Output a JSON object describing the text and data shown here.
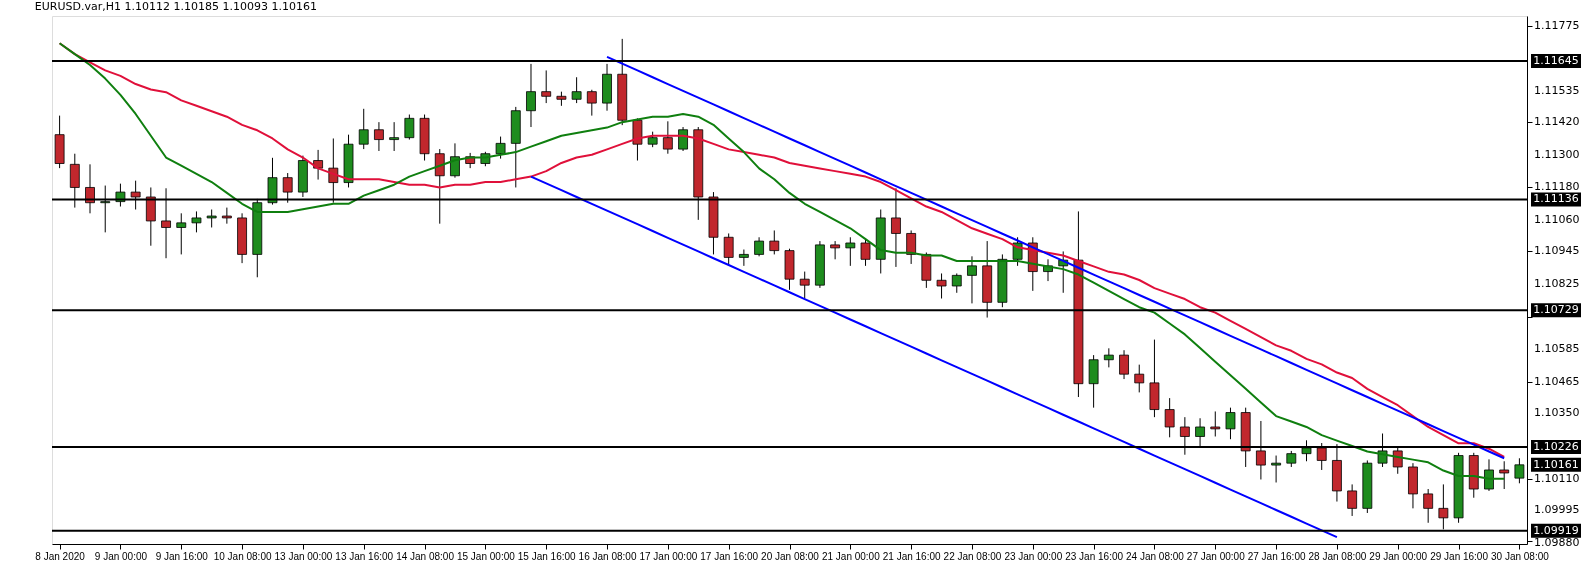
{
  "chart_data": {
    "type": "candlestick",
    "title": "EURUSD.var,H1  1.10112 1.10185 1.10093 1.10161",
    "categories": [
      "8 Jan 2020",
      null,
      null,
      null,
      "9 Jan 00:00",
      null,
      null,
      null,
      "9 Jan 16:00",
      null,
      null,
      null,
      "10 Jan 08:00",
      null,
      null,
      null,
      "13 Jan 00:00",
      null,
      null,
      null,
      "13 Jan 16:00",
      null,
      null,
      null,
      "14 Jan 08:00",
      null,
      null,
      null,
      "15 Jan 00:00",
      null,
      null,
      null,
      "15 Jan 16:00",
      null,
      null,
      null,
      "16 Jan 08:00",
      null,
      null,
      null,
      "17 Jan 00:00",
      null,
      null,
      null,
      "17 Jan 16:00",
      null,
      null,
      null,
      "20 Jan 08:00",
      null,
      null,
      null,
      "21 Jan 00:00",
      null,
      null,
      null,
      "21 Jan 16:00",
      null,
      null,
      null,
      "22 Jan 08:00",
      null,
      null,
      null,
      "23 Jan 00:00",
      null,
      null,
      null,
      "23 Jan 16:00",
      null,
      null,
      null,
      "24 Jan 08:00",
      null,
      null,
      null,
      "27 Jan 00:00",
      null,
      null,
      null,
      "27 Jan 16:00",
      null,
      null,
      null,
      "28 Jan 08:00",
      null,
      null,
      null,
      "29 Jan 00:00",
      null,
      null,
      null,
      "29 Jan 16:00",
      null,
      null,
      null,
      "30 Jan 08:00"
    ],
    "ohlc": [
      [
        1.11374,
        1.11444,
        1.11251,
        1.11268
      ],
      [
        1.11265,
        1.11304,
        1.11106,
        1.1118
      ],
      [
        1.1118,
        1.11265,
        1.11085,
        1.11124
      ],
      [
        1.11124,
        1.11187,
        1.11015,
        1.11128
      ],
      [
        1.11128,
        1.11194,
        1.1111,
        1.11163
      ],
      [
        1.11163,
        1.11205,
        1.11099,
        1.11145
      ],
      [
        1.11145,
        1.1118,
        1.10966,
        1.11057
      ],
      [
        1.11057,
        1.11177,
        1.1092,
        1.11033
      ],
      [
        1.11033,
        1.11085,
        1.10934,
        1.1105
      ],
      [
        1.1105,
        1.11092,
        1.11015,
        1.11068
      ],
      [
        1.11068,
        1.11099,
        1.11033,
        1.11075
      ],
      [
        1.11075,
        1.11106,
        1.11047,
        1.11068
      ],
      [
        1.11068,
        1.11085,
        1.10902,
        1.10934
      ],
      [
        1.10934,
        1.11138,
        1.1085,
        1.11124
      ],
      [
        1.11124,
        1.11289,
        1.11117,
        1.11216
      ],
      [
        1.11216,
        1.11233,
        1.11124,
        1.11163
      ],
      [
        1.11163,
        1.11297,
        1.11145,
        1.11279
      ],
      [
        1.11279,
        1.11318,
        1.11209,
        1.11251
      ],
      [
        1.11251,
        1.1136,
        1.11124,
        1.11198
      ],
      [
        1.11198,
        1.11374,
        1.1118,
        1.11339
      ],
      [
        1.11339,
        1.11469,
        1.11321,
        1.11392
      ],
      [
        1.11392,
        1.1142,
        1.11314,
        1.11356
      ],
      [
        1.11356,
        1.1142,
        1.11314,
        1.11363
      ],
      [
        1.11363,
        1.11448,
        1.11356,
        1.11434
      ],
      [
        1.11434,
        1.11448,
        1.11279,
        1.11304
      ],
      [
        1.11304,
        1.11321,
        1.11047,
        1.11223
      ],
      [
        1.11223,
        1.11342,
        1.11216,
        1.11293
      ],
      [
        1.11293,
        1.11307,
        1.11251,
        1.11268
      ],
      [
        1.11268,
        1.11311,
        1.11258,
        1.11304
      ],
      [
        1.11304,
        1.11367,
        1.11286,
        1.11342
      ],
      [
        1.11342,
        1.11476,
        1.1118,
        1.11462
      ],
      [
        1.11462,
        1.11634,
        1.11402,
        1.11532
      ],
      [
        1.11532,
        1.1161,
        1.1149,
        1.11515
      ],
      [
        1.11515,
        1.11532,
        1.1148,
        1.11504
      ],
      [
        1.11504,
        1.11585,
        1.1149,
        1.11532
      ],
      [
        1.11532,
        1.11539,
        1.11444,
        1.1149
      ],
      [
        1.1149,
        1.11634,
        1.11462,
        1.11596
      ],
      [
        1.11596,
        1.11726,
        1.11409,
        1.11427
      ],
      [
        1.11427,
        1.11434,
        1.11279,
        1.11339
      ],
      [
        1.11339,
        1.11385,
        1.11328,
        1.11363
      ],
      [
        1.11363,
        1.11423,
        1.11304,
        1.11321
      ],
      [
        1.11321,
        1.11402,
        1.11314,
        1.11392
      ],
      [
        1.11392,
        1.11402,
        1.11061,
        1.11145
      ],
      [
        1.11145,
        1.11163,
        1.10934,
        1.10997
      ],
      [
        1.10997,
        1.11011,
        1.10892,
        1.10923
      ],
      [
        1.10923,
        1.10952,
        1.10892,
        1.10934
      ],
      [
        1.10934,
        1.10997,
        1.10927,
        1.10983
      ],
      [
        1.10983,
        1.11022,
        1.10934,
        1.10948
      ],
      [
        1.10948,
        1.10955,
        1.10804,
        1.10843
      ],
      [
        1.10843,
        1.10871,
        1.10772,
        1.10821
      ],
      [
        1.10821,
        1.10983,
        1.10811,
        1.10969
      ],
      [
        1.10969,
        1.10983,
        1.10916,
        1.10958
      ],
      [
        1.10958,
        1.10997,
        1.10892,
        1.10976
      ],
      [
        1.10976,
        1.10994,
        1.10892,
        1.10916
      ],
      [
        1.10916,
        1.11099,
        1.10864,
        1.11068
      ],
      [
        1.11068,
        1.11177,
        1.10888,
        1.11011
      ],
      [
        1.11011,
        1.11022,
        1.10899,
        1.10934
      ],
      [
        1.10934,
        1.10941,
        1.10811,
        1.10839
      ],
      [
        1.10839,
        1.10864,
        1.10772,
        1.10818
      ],
      [
        1.10818,
        1.10864,
        1.10793,
        1.10857
      ],
      [
        1.10857,
        1.10927,
        1.10754,
        1.10892
      ],
      [
        1.10892,
        1.10983,
        1.10702,
        1.10758
      ],
      [
        1.10758,
        1.10934,
        1.1074,
        1.10916
      ],
      [
        1.10916,
        1.10997,
        1.10892,
        1.10976
      ],
      [
        1.10976,
        1.10997,
        1.108,
        1.10871
      ],
      [
        1.10871,
        1.10916,
        1.10836,
        1.10892
      ],
      [
        1.10892,
        1.10945,
        1.10793,
        1.10913
      ],
      [
        1.10913,
        1.11092,
        1.1041,
        1.10459
      ],
      [
        1.10459,
        1.10564,
        1.10371,
        1.10547
      ],
      [
        1.10547,
        1.10589,
        1.10519,
        1.10564
      ],
      [
        1.10564,
        1.10582,
        1.10476,
        1.10494
      ],
      [
        1.10494,
        1.10529,
        1.10427,
        1.10462
      ],
      [
        1.10462,
        1.10621,
        1.10336,
        1.10364
      ],
      [
        1.10364,
        1.10406,
        1.10262,
        1.103
      ],
      [
        1.103,
        1.10336,
        1.10198,
        1.10265
      ],
      [
        1.10265,
        1.10332,
        1.1023,
        1.103
      ],
      [
        1.103,
        1.10357,
        1.10265,
        1.10293
      ],
      [
        1.10293,
        1.10371,
        1.10255,
        1.10353
      ],
      [
        1.10353,
        1.10371,
        1.10153,
        1.10212
      ],
      [
        1.10212,
        1.10322,
        1.10107,
        1.1016
      ],
      [
        1.1016,
        1.10195,
        1.10096,
        1.10167
      ],
      [
        1.10167,
        1.10212,
        1.10153,
        1.10202
      ],
      [
        1.10202,
        1.10251,
        1.10174,
        1.10223
      ],
      [
        1.10223,
        1.10241,
        1.10142,
        1.10177
      ],
      [
        1.10177,
        1.10237,
        1.10026,
        1.10065
      ],
      [
        1.10065,
        1.10089,
        1.09973,
        1.10001
      ],
      [
        1.10001,
        1.10177,
        1.09984,
        1.10167
      ],
      [
        1.10167,
        1.10276,
        1.10153,
        1.10212
      ],
      [
        1.10212,
        1.1023,
        1.10128,
        1.10153
      ],
      [
        1.10153,
        1.10167,
        1.10001,
        1.10054
      ],
      [
        1.10054,
        1.10072,
        1.09948,
        1.10001
      ],
      [
        1.10001,
        1.10089,
        1.09924,
        1.09966
      ],
      [
        1.09966,
        1.10205,
        1.09948,
        1.10195
      ],
      [
        1.10195,
        1.10205,
        1.1004,
        1.10072
      ],
      [
        1.10072,
        1.10181,
        1.10065,
        1.10142
      ],
      [
        1.10142,
        1.10174,
        1.10072,
        1.10131
      ],
      [
        1.10112,
        1.10185,
        1.10093,
        1.10161
      ]
    ],
    "series": [
      {
        "type": "line",
        "color": "#e0103a",
        "values": [
          1.1171,
          1.1167,
          1.1164,
          1.1161,
          1.1159,
          1.1156,
          1.1154,
          1.1153,
          1.115,
          1.1148,
          1.1146,
          1.1144,
          1.1141,
          1.1139,
          1.1136,
          1.1132,
          1.1129,
          1.1125,
          1.1123,
          1.1121,
          1.1121,
          1.1121,
          1.112,
          1.1119,
          1.1119,
          1.1118,
          1.1119,
          1.1119,
          1.112,
          1.112,
          1.1121,
          1.1122,
          1.1124,
          1.1127,
          1.1129,
          1.113,
          1.1132,
          1.1134,
          1.1136,
          1.1137,
          1.1137,
          1.1137,
          1.1136,
          1.1134,
          1.1132,
          1.1131,
          1.113,
          1.1129,
          1.1127,
          1.1126,
          1.1125,
          1.1124,
          1.1123,
          1.1122,
          1.112,
          1.1117,
          1.1114,
          1.1111,
          1.1109,
          1.1106,
          1.1103,
          1.1101,
          1.1099,
          1.1096,
          1.1095,
          1.1094,
          1.1093,
          1.1091,
          1.1089,
          1.1087,
          1.1086,
          1.1084,
          1.1081,
          1.1079,
          1.1077,
          1.1074,
          1.1072,
          1.1069,
          1.1066,
          1.1063,
          1.106,
          1.1058,
          1.1055,
          1.1053,
          1.105,
          1.1048,
          1.1044,
          1.1041,
          1.1038,
          1.1034,
          1.103,
          1.1027,
          1.1024,
          1.1024,
          1.1022,
          1.1019,
          null
        ]
      },
      {
        "type": "line",
        "color": "#0f7f0f",
        "values": [
          1.1171,
          1.1167,
          1.1163,
          1.1158,
          1.1152,
          1.1145,
          1.1137,
          1.1129,
          1.1126,
          1.1123,
          1.112,
          1.1116,
          1.1112,
          1.1109,
          1.1109,
          1.1109,
          1.111,
          1.1111,
          1.1112,
          1.1112,
          1.1115,
          1.1117,
          1.1119,
          1.1122,
          1.1124,
          1.1126,
          1.1128,
          1.1129,
          1.1129,
          1.113,
          1.1131,
          1.1133,
          1.1135,
          1.1137,
          1.1138,
          1.1139,
          1.114,
          1.1142,
          1.1143,
          1.1144,
          1.1144,
          1.1145,
          1.1144,
          1.1141,
          1.1136,
          1.1131,
          1.1125,
          1.1121,
          1.1116,
          1.1112,
          1.1109,
          1.1106,
          1.1103,
          1.1099,
          1.1095,
          1.1094,
          1.1094,
          1.1093,
          1.1093,
          1.1091,
          1.1091,
          1.1091,
          1.1091,
          1.1091,
          1.109,
          1.1089,
          1.1088,
          1.1086,
          1.1083,
          1.108,
          1.1077,
          1.1074,
          1.1072,
          1.1068,
          1.1064,
          1.1059,
          1.1054,
          1.1049,
          1.1044,
          1.1039,
          1.1034,
          1.1032,
          1.103,
          1.1027,
          1.1025,
          1.1023,
          1.1021,
          1.102,
          1.1019,
          1.1018,
          1.1017,
          1.1014,
          1.1012,
          1.1012,
          1.1011,
          1.1011,
          null
        ]
      },
      {
        "type": "line",
        "color": "#0000ff",
        "values": [
          null,
          null,
          null,
          null,
          null,
          null,
          null,
          null,
          null,
          null,
          null,
          null,
          null,
          null,
          null,
          null,
          null,
          null,
          null,
          null,
          null,
          null,
          null,
          null,
          null,
          null,
          null,
          null,
          null,
          null,
          null,
          null,
          null,
          null,
          null,
          null,
          1.1166,
          1.11635,
          1.1161,
          1.11585,
          1.1156,
          1.11535,
          1.1151,
          1.11485,
          1.1146,
          1.11435,
          1.1141,
          1.11385,
          1.1136,
          1.11335,
          1.1131,
          1.11285,
          1.1126,
          1.11235,
          1.1121,
          1.11185,
          1.1116,
          1.11135,
          1.1111,
          1.11085,
          1.1106,
          1.11035,
          1.1101,
          1.10985,
          1.1096,
          1.10935,
          1.1091,
          1.10885,
          1.1086,
          1.10835,
          1.1081,
          1.10785,
          1.1076,
          1.10735,
          1.1071,
          1.10685,
          1.1066,
          1.10635,
          1.1061,
          1.10585,
          1.1056,
          1.10535,
          1.1051,
          1.10485,
          1.1046,
          1.10435,
          1.1041,
          1.10385,
          1.1036,
          1.10335,
          1.1031,
          1.10285,
          1.1026,
          1.10235,
          1.1021,
          1.10185,
          null
        ]
      },
      {
        "type": "line",
        "color": "#0000ff",
        "values": [
          null,
          null,
          null,
          null,
          null,
          null,
          null,
          null,
          null,
          null,
          null,
          null,
          null,
          null,
          null,
          null,
          null,
          null,
          null,
          null,
          null,
          null,
          null,
          null,
          null,
          null,
          null,
          null,
          null,
          null,
          null,
          1.1122,
          1.11195,
          1.1117,
          1.11145,
          1.1112,
          1.11095,
          1.1107,
          1.11045,
          1.1102,
          1.10995,
          1.1097,
          1.10945,
          1.1092,
          1.10895,
          1.1087,
          1.10845,
          1.1082,
          1.10795,
          1.1077,
          1.10745,
          1.1072,
          1.10695,
          1.1067,
          1.10645,
          1.1062,
          1.10595,
          1.1057,
          1.10545,
          1.1052,
          1.10495,
          1.1047,
          1.10445,
          1.1042,
          1.10395,
          1.1037,
          1.10345,
          1.1032,
          1.10295,
          1.1027,
          1.10245,
          1.1022,
          1.10195,
          1.1017,
          1.10145,
          1.1012,
          1.10095,
          1.1007,
          1.10045,
          1.1002,
          1.09995,
          1.0997,
          1.09945,
          1.0992,
          1.09895,
          null,
          null,
          null,
          null,
          null,
          null,
          null,
          null,
          null,
          null,
          null,
          null
        ]
      }
    ],
    "ylim": [
      1.0987,
      1.1181
    ],
    "yticks": [
      1.11775,
      1.11535,
      {
        "value": 1.1142,
        "label": "1.11420"
      },
      {
        "value": 1.113,
        "label": "1.11300"
      },
      {
        "value": 1.1118,
        "label": "1.11180"
      },
      {
        "value": 1.1106,
        "label": "1.11060"
      },
      1.10945,
      1.10825,
      {
        "value": 1.10705,
        "label": null
      },
      1.10585,
      1.10465,
      {
        "value": 1.1035,
        "label": "1.10350"
      },
      {
        "value": 1.1011,
        "label": "1.10110"
      },
      1.09995,
      {
        "value": 1.0988,
        "label": "1.09880"
      }
    ],
    "ref_lines": [
      {
        "axis": "y",
        "value": 1.11645,
        "label": "1.11645",
        "color": "#000000"
      },
      {
        "axis": "y",
        "value": 1.11136,
        "label": "1.11136",
        "color": "#000000"
      },
      {
        "axis": "y",
        "value": 1.10729,
        "label": "1.10729",
        "color": "#000000"
      },
      {
        "axis": "y",
        "value": 1.10226,
        "label": "1.10226",
        "color": "#000000"
      },
      {
        "axis": "y",
        "value": 1.09919,
        "label": "1.09919",
        "color": "#000000"
      }
    ],
    "annotations": [
      "1.10161"
    ]
  }
}
